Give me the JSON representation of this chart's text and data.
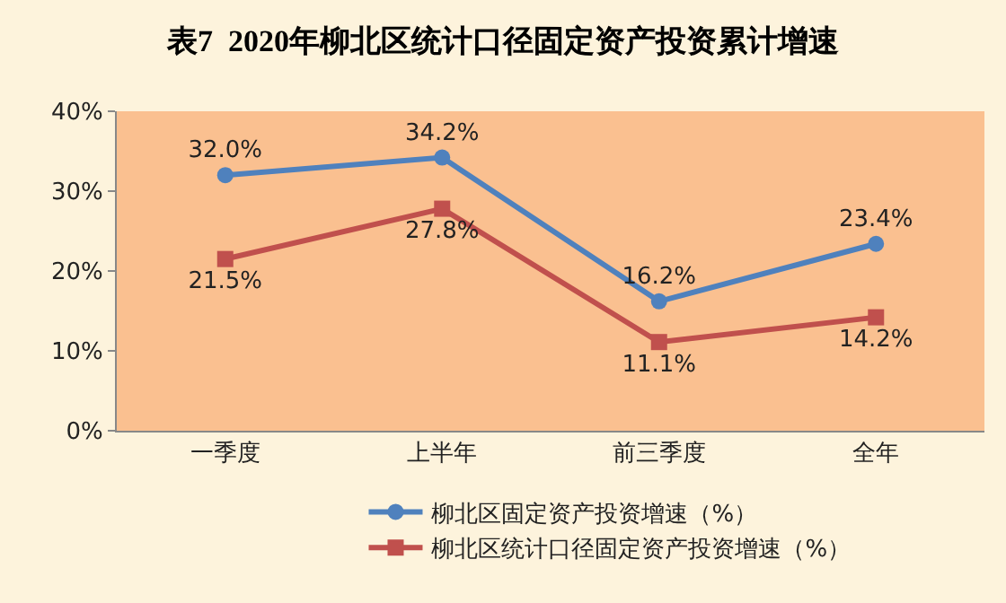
{
  "chart_data": {
    "type": "line",
    "title": "表7  2020年柳北区统计口径固定资产投资累计增速",
    "categories": [
      "一季度",
      "上半年",
      "前三季度",
      "全年"
    ],
    "series": [
      {
        "name": "柳北区固定资产投资增速（%）",
        "color": "#4f81bd",
        "marker": "circle",
        "values": [
          32.0,
          34.2,
          16.2,
          23.4
        ],
        "value_labels": [
          "32.0%",
          "34.2%",
          "16.2%",
          "23.4%"
        ]
      },
      {
        "name": "柳北区统计口径固定资产投资增速（%）",
        "color": "#c0504d",
        "marker": "square",
        "values": [
          21.5,
          27.8,
          11.1,
          14.2
        ],
        "value_labels": [
          "21.5%",
          "27.8%",
          "11.1%",
          "14.2%"
        ]
      }
    ],
    "ylim": [
      0,
      40
    ],
    "yticks": [
      {
        "value": 0,
        "label": "0%"
      },
      {
        "value": 10,
        "label": "10%"
      },
      {
        "value": 20,
        "label": "20%"
      },
      {
        "value": 30,
        "label": "30%"
      },
      {
        "value": 40,
        "label": "40%"
      }
    ],
    "grid": false,
    "legend": "bottom",
    "line_style": "solid"
  }
}
